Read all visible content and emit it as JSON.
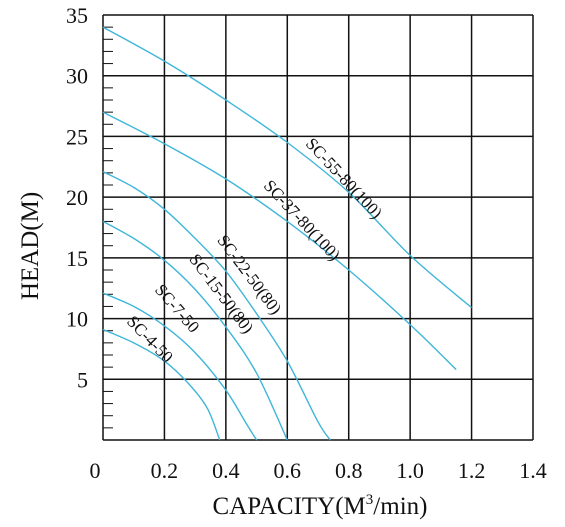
{
  "chart_data": {
    "type": "line",
    "xlabel": "CAPACITY(M",
    "xlabel_sup": "3",
    "xlabel_tail": "/min)",
    "ylabel": "HEAD(M)",
    "xlim": [
      0,
      1.4
    ],
    "ylim": [
      0,
      35
    ],
    "x_ticks": [
      {
        "value": 0,
        "label": "0"
      },
      {
        "value": 0.2,
        "label": "0.2"
      },
      {
        "value": 0.4,
        "label": "0.4"
      },
      {
        "value": 0.6,
        "label": "0.6"
      },
      {
        "value": 0.8,
        "label": "0.8"
      },
      {
        "value": 1.0,
        "label": "1.0"
      },
      {
        "value": 1.2,
        "label": "1.2"
      },
      {
        "value": 1.4,
        "label": "1.4"
      }
    ],
    "y_ticks": [
      {
        "value": 5,
        "label": "5"
      },
      {
        "value": 10,
        "label": "10"
      },
      {
        "value": 15,
        "label": "15"
      },
      {
        "value": 20,
        "label": "20"
      },
      {
        "value": 25,
        "label": "25"
      },
      {
        "value": 30,
        "label": "30"
      },
      {
        "value": 35,
        "label": "35"
      }
    ],
    "grid": true,
    "minor_y_step": 1,
    "line_color": "#3fb6d9",
    "series": [
      {
        "name": "SC-55-80(100)",
        "points": [
          [
            0,
            34.0
          ],
          [
            0.2,
            31.2
          ],
          [
            0.4,
            28.0
          ],
          [
            0.6,
            24.5
          ],
          [
            0.8,
            20.4
          ],
          [
            1.0,
            15.2
          ],
          [
            1.2,
            10.9
          ]
        ]
      },
      {
        "name": "SC-37-80(100)",
        "points": [
          [
            0,
            27.0
          ],
          [
            0.2,
            24.4
          ],
          [
            0.4,
            21.5
          ],
          [
            0.6,
            18.0
          ],
          [
            0.8,
            14.0
          ],
          [
            1.0,
            9.5
          ],
          [
            1.15,
            5.8
          ]
        ]
      },
      {
        "name": "SC-22-50(80)",
        "points": [
          [
            0,
            22.1
          ],
          [
            0.1,
            20.8
          ],
          [
            0.2,
            19.0
          ],
          [
            0.3,
            16.6
          ],
          [
            0.4,
            13.9
          ],
          [
            0.5,
            10.4
          ],
          [
            0.6,
            6.5
          ],
          [
            0.7,
            1.5
          ],
          [
            0.74,
            0
          ]
        ]
      },
      {
        "name": "SC-15-50(80)",
        "points": [
          [
            0,
            18.0
          ],
          [
            0.1,
            16.6
          ],
          [
            0.2,
            14.8
          ],
          [
            0.3,
            12.4
          ],
          [
            0.4,
            9.3
          ],
          [
            0.5,
            5.5
          ],
          [
            0.6,
            0
          ]
        ]
      },
      {
        "name": "SC-7-50",
        "points": [
          [
            0,
            12.1
          ],
          [
            0.1,
            11.0
          ],
          [
            0.2,
            9.4
          ],
          [
            0.3,
            7.2
          ],
          [
            0.4,
            4.1
          ],
          [
            0.47,
            1.2
          ],
          [
            0.5,
            0
          ]
        ]
      },
      {
        "name": "SC-4-50",
        "points": [
          [
            0,
            9.1
          ],
          [
            0.1,
            8.0
          ],
          [
            0.2,
            6.5
          ],
          [
            0.28,
            4.6
          ],
          [
            0.34,
            2.6
          ],
          [
            0.38,
            0
          ]
        ]
      }
    ]
  }
}
